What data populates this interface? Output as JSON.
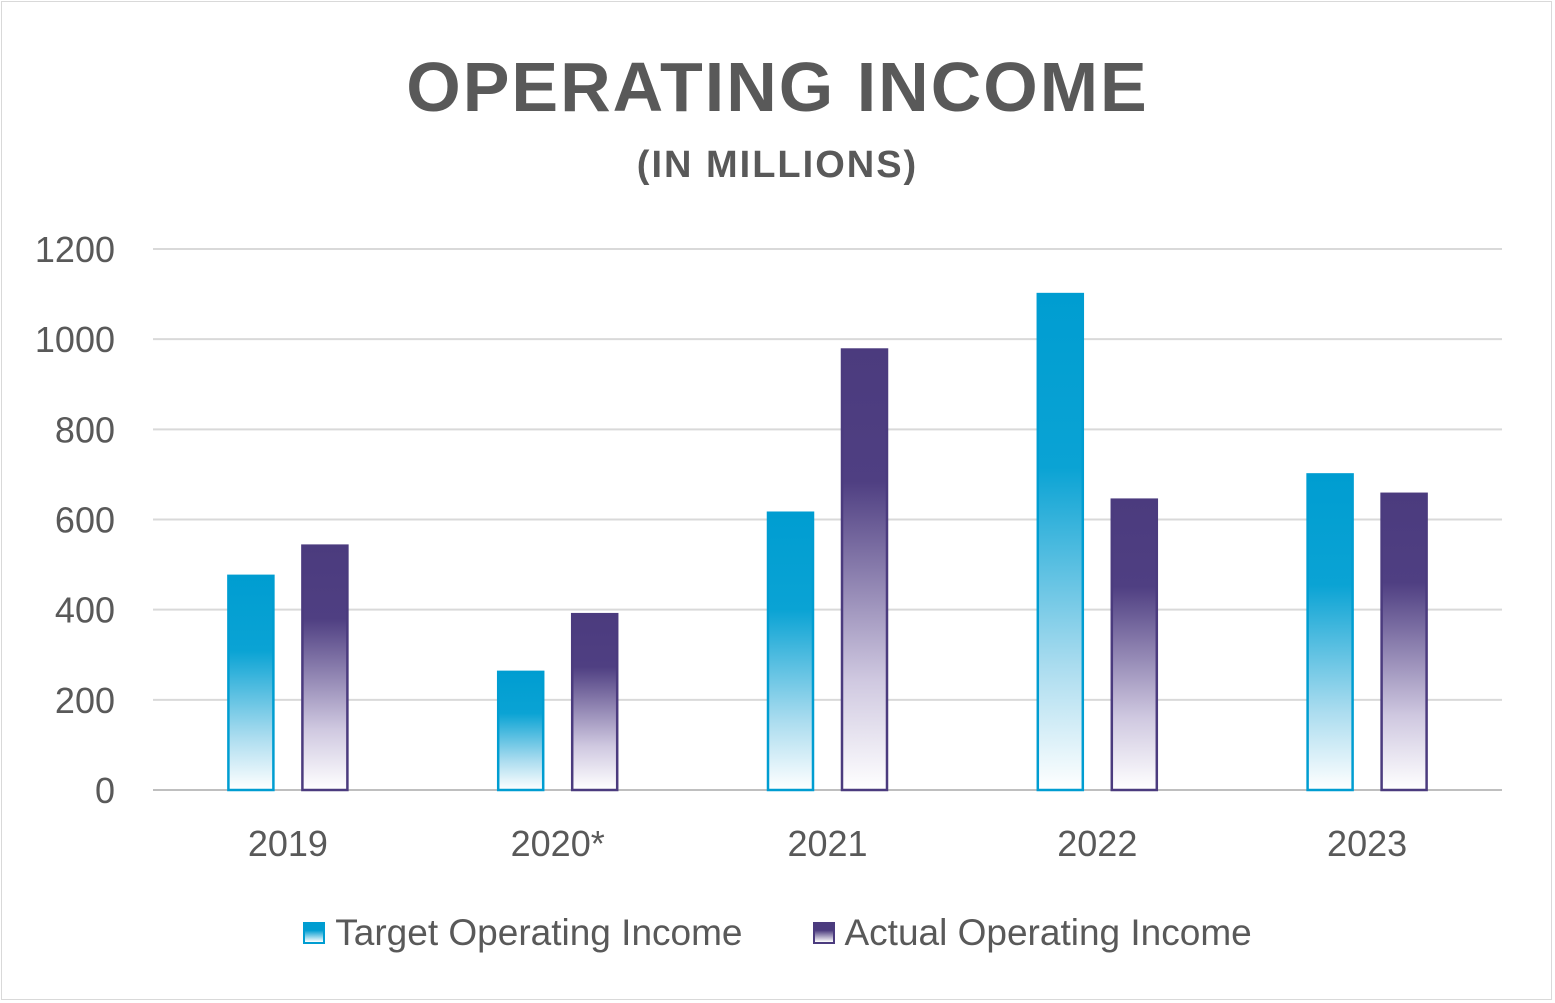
{
  "chart_data": {
    "type": "bar",
    "title": "OPERATING INCOME",
    "subtitle": "(IN MILLIONS)",
    "categories": [
      "2019",
      "2020*",
      "2021",
      "2022",
      "2023"
    ],
    "series": [
      {
        "name": "Target Operating Income",
        "color": "#009dd1",
        "values": [
          475,
          262,
          615,
          1100,
          700
        ]
      },
      {
        "name": "Actual Operating Income",
        "color": "#4b3b7e",
        "values": [
          542,
          390,
          977,
          644,
          657
        ]
      }
    ],
    "ylim": [
      0,
      1200
    ],
    "yticks": [
      0,
      200,
      400,
      600,
      800,
      1000,
      1200
    ],
    "xlabel": "",
    "ylabel": "",
    "grid": true,
    "legend_position": "bottom"
  }
}
